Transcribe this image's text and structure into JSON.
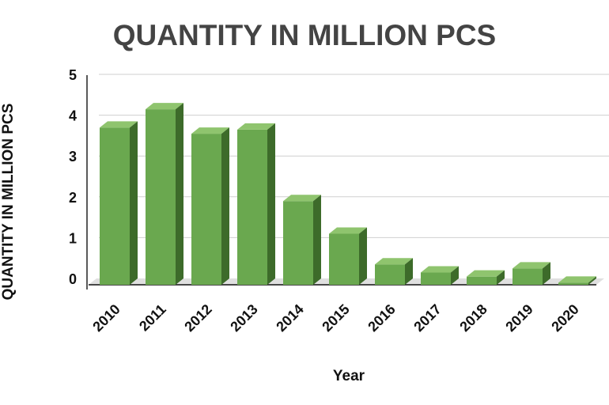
{
  "chart_data": {
    "type": "bar",
    "title": "QUANTITY IN MILLION PCS",
    "xlabel": "Year",
    "ylabel": "QUANTITY IN MILLION PCS",
    "categories": [
      "2010",
      "2011",
      "2012",
      "2013",
      "2014",
      "2015",
      "2016",
      "2017",
      "2018",
      "2019",
      "2020"
    ],
    "values": [
      3.85,
      4.3,
      3.7,
      3.8,
      2.05,
      1.25,
      0.5,
      0.3,
      0.2,
      0.4,
      0.05
    ],
    "ylim": [
      0,
      5
    ],
    "yticks": [
      "0",
      "1",
      "2",
      "3",
      "4",
      "5"
    ],
    "grid": true,
    "legend": "none",
    "style": "3d-column",
    "colors": {
      "front": "#6aa84f",
      "top": "#8fc46e",
      "side": "#3d6b2a",
      "floor": "#e0e0e0",
      "title": "#444444"
    }
  }
}
